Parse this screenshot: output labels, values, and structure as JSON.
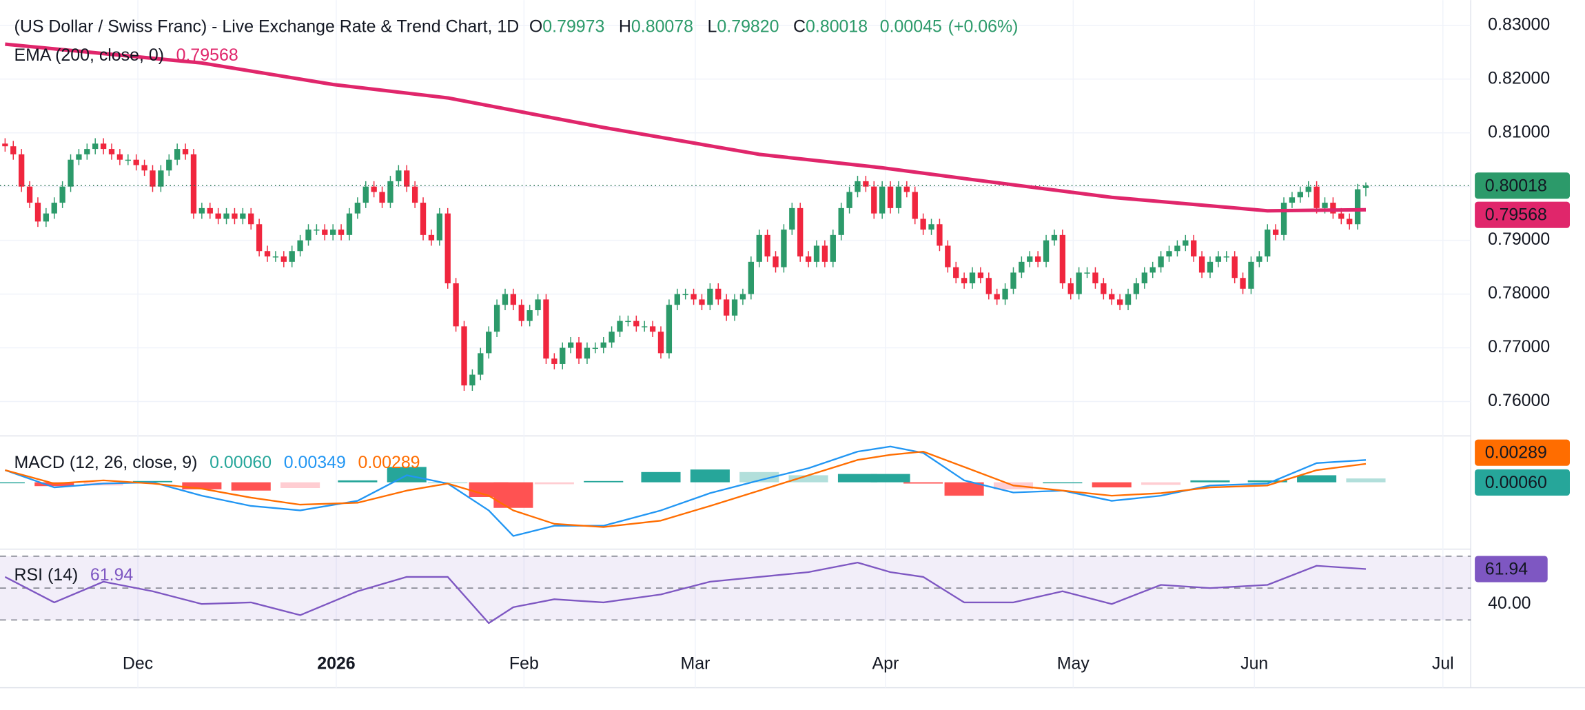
{
  "chart_data": [
    {
      "type": "candlestick",
      "title": "(US Dollar / Swiss Franc) - Live Exchange Rate & Trend Chart, 1D",
      "header_labels": [
        "O",
        "H",
        "L",
        "C"
      ],
      "header_values": [
        "0.79973",
        "0.80078",
        "0.79820",
        "0.80018"
      ],
      "change": "0.00045",
      "change_pct": "(+0.06%)",
      "up_color": "#2c9a6a",
      "down_color": "#f0263e",
      "x": [
        0,
        1,
        2,
        3,
        4,
        5,
        6,
        7,
        8,
        9,
        10,
        11,
        12,
        13,
        14,
        15,
        16,
        17,
        18,
        19,
        20,
        21,
        22,
        23,
        24,
        25,
        26,
        27,
        28,
        29,
        30,
        31,
        32,
        33,
        34,
        35,
        36,
        37,
        38,
        39,
        40,
        41,
        42,
        43,
        44,
        45,
        46,
        47,
        48,
        49,
        50,
        51,
        52,
        53,
        54,
        55,
        56,
        57,
        58,
        59,
        60,
        61,
        62,
        63,
        64,
        65,
        66,
        67,
        68,
        69,
        70,
        71,
        72,
        73,
        74,
        75,
        76,
        77,
        78,
        79,
        80,
        81,
        82,
        83,
        84,
        85,
        86,
        87,
        88,
        89,
        90,
        91,
        92,
        93,
        94,
        95,
        96,
        97,
        98,
        99,
        100,
        101,
        102,
        103,
        104,
        105,
        106,
        107,
        108,
        109,
        110,
        111,
        112,
        113,
        114,
        115,
        116,
        117,
        118,
        119,
        120,
        121,
        122,
        123,
        124,
        125,
        126,
        127,
        128,
        129,
        130,
        131,
        132,
        133,
        134,
        135,
        136,
        137,
        138,
        139,
        140,
        141,
        142,
        143,
        144,
        145,
        146,
        147,
        148,
        149,
        150,
        151,
        152,
        153,
        154,
        155,
        156,
        157,
        158,
        159,
        160,
        161,
        162,
        163,
        164,
        165,
        166
      ],
      "open": [
        0.808,
        0.8075,
        0.806,
        0.8,
        0.797,
        0.7935,
        0.795,
        0.797,
        0.8,
        0.805,
        0.806,
        0.807,
        0.808,
        0.807,
        0.806,
        0.805,
        0.805,
        0.804,
        0.803,
        0.8,
        0.803,
        0.805,
        0.807,
        0.806,
        0.795,
        0.796,
        0.795,
        0.794,
        0.795,
        0.794,
        0.795,
        0.793,
        0.788,
        0.787,
        0.787,
        0.786,
        0.788,
        0.79,
        0.792,
        0.792,
        0.791,
        0.792,
        0.791,
        0.795,
        0.797,
        0.8,
        0.799,
        0.797,
        0.801,
        0.803,
        0.8,
        0.797,
        0.791,
        0.79,
        0.795,
        0.782,
        0.774,
        0.763,
        0.765,
        0.769,
        0.773,
        0.778,
        0.78,
        0.778,
        0.775,
        0.777,
        0.779,
        0.768,
        0.767,
        0.77,
        0.771,
        0.768,
        0.77,
        0.77,
        0.771,
        0.773,
        0.775,
        0.775,
        0.774,
        0.774,
        0.773,
        0.769,
        0.778,
        0.78,
        0.78,
        0.779,
        0.778,
        0.781,
        0.779,
        0.776,
        0.779,
        0.78,
        0.786,
        0.791,
        0.787,
        0.785,
        0.792,
        0.796,
        0.787,
        0.786,
        0.789,
        0.786,
        0.791,
        0.796,
        0.799,
        0.801,
        0.8,
        0.795,
        0.8,
        0.796,
        0.8,
        0.799,
        0.794,
        0.792,
        0.793,
        0.789,
        0.785,
        0.783,
        0.782,
        0.784,
        0.783,
        0.78,
        0.779,
        0.781,
        0.784,
        0.786,
        0.787,
        0.786,
        0.79,
        0.791,
        0.782,
        0.78,
        0.784,
        0.784,
        0.782,
        0.78,
        0.779,
        0.778,
        0.78,
        0.782,
        0.784,
        0.785,
        0.787,
        0.788,
        0.789,
        0.79,
        0.787,
        0.784,
        0.786,
        0.787,
        0.787,
        0.783,
        0.781,
        0.786,
        0.787,
        0.792,
        0.791,
        0.797,
        0.798,
        0.799,
        0.8,
        0.796,
        0.797,
        0.795,
        0.794,
        0.793,
        0.79973
      ],
      "high": [
        0.809,
        0.8085,
        0.807,
        0.801,
        0.798,
        0.796,
        0.798,
        0.801,
        0.806,
        0.807,
        0.808,
        0.809,
        0.809,
        0.808,
        0.807,
        0.806,
        0.806,
        0.805,
        0.804,
        0.804,
        0.806,
        0.808,
        0.808,
        0.807,
        0.797,
        0.797,
        0.796,
        0.796,
        0.796,
        0.796,
        0.796,
        0.794,
        0.789,
        0.788,
        0.788,
        0.789,
        0.791,
        0.793,
        0.793,
        0.793,
        0.793,
        0.793,
        0.796,
        0.798,
        0.801,
        0.801,
        0.8,
        0.802,
        0.804,
        0.804,
        0.801,
        0.798,
        0.792,
        0.796,
        0.796,
        0.783,
        0.775,
        0.766,
        0.77,
        0.774,
        0.779,
        0.781,
        0.781,
        0.779,
        0.778,
        0.78,
        0.78,
        0.769,
        0.771,
        0.772,
        0.772,
        0.771,
        0.771,
        0.772,
        0.774,
        0.776,
        0.776,
        0.776,
        0.775,
        0.775,
        0.774,
        0.779,
        0.781,
        0.781,
        0.781,
        0.78,
        0.782,
        0.782,
        0.78,
        0.78,
        0.781,
        0.787,
        0.792,
        0.792,
        0.788,
        0.793,
        0.797,
        0.797,
        0.788,
        0.79,
        0.79,
        0.792,
        0.797,
        0.8,
        0.802,
        0.802,
        0.801,
        0.801,
        0.801,
        0.801,
        0.801,
        0.8,
        0.795,
        0.794,
        0.794,
        0.79,
        0.786,
        0.784,
        0.785,
        0.785,
        0.784,
        0.781,
        0.782,
        0.785,
        0.787,
        0.788,
        0.788,
        0.791,
        0.792,
        0.792,
        0.783,
        0.785,
        0.785,
        0.785,
        0.783,
        0.781,
        0.78,
        0.781,
        0.783,
        0.785,
        0.786,
        0.788,
        0.789,
        0.79,
        0.791,
        0.791,
        0.788,
        0.787,
        0.788,
        0.788,
        0.788,
        0.784,
        0.787,
        0.788,
        0.793,
        0.793,
        0.798,
        0.799,
        0.8,
        0.801,
        0.801,
        0.798,
        0.798,
        0.796,
        0.795,
        0.8005,
        0.80078
      ],
      "low": [
        0.8065,
        0.805,
        0.799,
        0.796,
        0.7925,
        0.7925,
        0.794,
        0.796,
        0.799,
        0.804,
        0.805,
        0.806,
        0.806,
        0.805,
        0.804,
        0.804,
        0.803,
        0.802,
        0.799,
        0.799,
        0.802,
        0.804,
        0.805,
        0.794,
        0.794,
        0.794,
        0.793,
        0.793,
        0.793,
        0.793,
        0.792,
        0.787,
        0.786,
        0.786,
        0.785,
        0.785,
        0.787,
        0.789,
        0.791,
        0.79,
        0.79,
        0.79,
        0.79,
        0.794,
        0.796,
        0.798,
        0.796,
        0.796,
        0.8,
        0.799,
        0.796,
        0.79,
        0.789,
        0.789,
        0.781,
        0.773,
        0.762,
        0.762,
        0.764,
        0.768,
        0.772,
        0.777,
        0.777,
        0.774,
        0.774,
        0.776,
        0.767,
        0.766,
        0.766,
        0.769,
        0.767,
        0.767,
        0.769,
        0.769,
        0.77,
        0.772,
        0.774,
        0.773,
        0.773,
        0.772,
        0.768,
        0.768,
        0.777,
        0.779,
        0.778,
        0.777,
        0.777,
        0.778,
        0.775,
        0.775,
        0.778,
        0.779,
        0.785,
        0.786,
        0.784,
        0.784,
        0.791,
        0.786,
        0.785,
        0.785,
        0.785,
        0.785,
        0.79,
        0.795,
        0.798,
        0.799,
        0.794,
        0.794,
        0.795,
        0.795,
        0.798,
        0.793,
        0.791,
        0.791,
        0.788,
        0.784,
        0.782,
        0.781,
        0.781,
        0.782,
        0.779,
        0.778,
        0.778,
        0.78,
        0.783,
        0.785,
        0.785,
        0.785,
        0.789,
        0.781,
        0.779,
        0.779,
        0.783,
        0.781,
        0.779,
        0.778,
        0.777,
        0.777,
        0.779,
        0.781,
        0.783,
        0.784,
        0.786,
        0.787,
        0.788,
        0.786,
        0.783,
        0.783,
        0.785,
        0.786,
        0.782,
        0.78,
        0.78,
        0.785,
        0.786,
        0.79,
        0.79,
        0.796,
        0.797,
        0.798,
        0.795,
        0.795,
        0.794,
        0.793,
        0.792,
        0.792,
        0.7982
      ],
      "close": [
        0.8075,
        0.806,
        0.8,
        0.797,
        0.7935,
        0.795,
        0.797,
        0.8,
        0.805,
        0.806,
        0.807,
        0.808,
        0.807,
        0.806,
        0.805,
        0.805,
        0.804,
        0.803,
        0.8,
        0.803,
        0.805,
        0.807,
        0.806,
        0.795,
        0.796,
        0.795,
        0.794,
        0.795,
        0.794,
        0.795,
        0.793,
        0.788,
        0.787,
        0.787,
        0.786,
        0.788,
        0.79,
        0.792,
        0.792,
        0.791,
        0.792,
        0.791,
        0.795,
        0.797,
        0.8,
        0.799,
        0.797,
        0.801,
        0.803,
        0.8,
        0.797,
        0.791,
        0.79,
        0.795,
        0.782,
        0.774,
        0.763,
        0.765,
        0.769,
        0.773,
        0.778,
        0.78,
        0.778,
        0.775,
        0.777,
        0.779,
        0.768,
        0.767,
        0.77,
        0.771,
        0.768,
        0.77,
        0.77,
        0.771,
        0.773,
        0.775,
        0.775,
        0.774,
        0.774,
        0.773,
        0.769,
        0.778,
        0.78,
        0.78,
        0.779,
        0.778,
        0.781,
        0.779,
        0.776,
        0.779,
        0.78,
        0.786,
        0.791,
        0.787,
        0.785,
        0.792,
        0.796,
        0.787,
        0.786,
        0.789,
        0.786,
        0.791,
        0.796,
        0.799,
        0.801,
        0.8,
        0.795,
        0.8,
        0.796,
        0.8,
        0.799,
        0.794,
        0.792,
        0.793,
        0.789,
        0.785,
        0.783,
        0.782,
        0.784,
        0.783,
        0.78,
        0.779,
        0.781,
        0.784,
        0.786,
        0.787,
        0.786,
        0.79,
        0.791,
        0.782,
        0.78,
        0.784,
        0.784,
        0.782,
        0.78,
        0.779,
        0.778,
        0.78,
        0.782,
        0.784,
        0.785,
        0.787,
        0.788,
        0.789,
        0.79,
        0.787,
        0.784,
        0.786,
        0.787,
        0.787,
        0.783,
        0.781,
        0.786,
        0.787,
        0.792,
        0.791,
        0.797,
        0.798,
        0.799,
        0.8,
        0.796,
        0.797,
        0.795,
        0.794,
        0.793,
        0.7995,
        0.80018
      ],
      "ema": {
        "name": "EMA (200, close, 0)",
        "color": "#e0266b",
        "last_label": "0.79568",
        "x": [
          0,
          24,
          40,
          54,
          73,
          92,
          107,
          117,
          135,
          154,
          166
        ],
        "values": [
          0.8265,
          0.823,
          0.819,
          0.8165,
          0.811,
          0.806,
          0.8035,
          0.8015,
          0.798,
          0.7955,
          0.79568
        ]
      },
      "xlim": [
        -0.62,
        178.8
      ],
      "xticks": [
        {
          "value": 16.2,
          "label": "Dec"
        },
        {
          "value": 40.4,
          "label": "2026"
        },
        {
          "value": 63.3,
          "label": "Feb"
        },
        {
          "value": 84.2,
          "label": "Mar"
        },
        {
          "value": 107.4,
          "label": "Apr"
        },
        {
          "value": 130.3,
          "label": "May"
        },
        {
          "value": 152.4,
          "label": "Jun"
        },
        {
          "value": 175.4,
          "label": "Jul"
        }
      ],
      "ylim": [
        0.7538,
        0.8347
      ],
      "yticks": [
        {
          "value": 0.76,
          "label": "0.76000"
        },
        {
          "value": 0.77,
          "label": "0.77000"
        },
        {
          "value": 0.78,
          "label": "0.78000"
        },
        {
          "value": 0.79,
          "label": "0.79000"
        },
        {
          "value": 0.8,
          "label": "0.80000"
        },
        {
          "value": 0.81,
          "label": "0.81000"
        },
        {
          "value": 0.82,
          "label": "0.82000"
        },
        {
          "value": 0.83,
          "label": "0.83000"
        }
      ],
      "grid": true
    },
    {
      "type": "macd",
      "title": "MACD (12, 26, close, 9)",
      "last_labels": [
        "0.00060",
        "0.00349",
        "0.00289"
      ],
      "x": [
        0,
        6,
        12,
        18,
        24,
        30,
        36,
        43,
        49,
        54,
        59,
        62,
        67,
        73,
        80,
        86,
        92,
        98,
        104,
        108,
        112,
        117,
        123,
        129,
        135,
        141,
        147,
        154,
        160,
        166
      ],
      "histogram": [
        0,
        -0.0006,
        -0.0005,
        0.0002,
        -0.0011,
        -0.0013,
        -0.0009,
        0.0003,
        0.0024,
        0,
        -0.0023,
        -0.004,
        -0.0003,
        0.0002,
        0.0016,
        0.002,
        0.0016,
        0.0011,
        0.0013,
        0.0013,
        -0.0002,
        -0.0021,
        -0.0011,
        0,
        -0.0008,
        -0.0004,
        0.0003,
        0.0003,
        0.0011,
        0.0006
      ],
      "histogram_colors": [
        "#26a69a",
        "#b2dfdb",
        "#ffcdd2",
        "#ff5252"
      ],
      "series": [
        {
          "color": "#2196f3",
          "values": [
            0.0019,
            -0.0008,
            -0.0002,
            0,
            -0.0021,
            -0.0037,
            -0.0044,
            -0.0029,
            0.0011,
            -0.0002,
            -0.0044,
            -0.0084,
            -0.0068,
            -0.0068,
            -0.0044,
            -0.0017,
            0.0003,
            0.0022,
            0.0048,
            0.0056,
            0.0046,
            0.0003,
            -0.0016,
            -0.0013,
            -0.0029,
            -0.0021,
            -0.0005,
            -0.0002,
            0.003,
            0.00349
          ]
        },
        {
          "color": "#ff6d00",
          "values": [
            0.0019,
            -0.0002,
            0.0003,
            -0.0002,
            -0.001,
            -0.0024,
            -0.0035,
            -0.0032,
            -0.0013,
            -0.0002,
            -0.0021,
            -0.0044,
            -0.0065,
            -0.007,
            -0.006,
            -0.0037,
            -0.0013,
            0.0011,
            0.0035,
            0.0043,
            0.0048,
            0.0024,
            -0.0005,
            -0.0013,
            -0.0021,
            -0.0017,
            -0.0008,
            -0.0005,
            0.0019,
            0.00289
          ]
        }
      ],
      "ylim": [
        -0.0103,
        0.0071
      ]
    },
    {
      "type": "line",
      "title": "RSI (14)",
      "color": "#7e57c2",
      "x": [
        0,
        6,
        12,
        18,
        24,
        30,
        36,
        43,
        49,
        54,
        59,
        62,
        67,
        73,
        80,
        86,
        92,
        98,
        104,
        108,
        112,
        117,
        123,
        129,
        135,
        141,
        147,
        154,
        160,
        166
      ],
      "values": [
        57,
        41,
        54,
        48,
        40,
        41,
        33,
        48,
        57,
        57,
        28,
        38,
        43,
        41,
        46,
        54,
        57,
        60,
        66,
        60,
        57,
        41,
        41,
        48,
        40,
        52,
        50,
        52,
        64,
        61.94
      ],
      "hlines": [
        70,
        50,
        30
      ],
      "ylim": [
        24.3,
        73.8
      ],
      "yticks": [
        {
          "value": 40,
          "label": "40.00"
        }
      ]
    }
  ]
}
